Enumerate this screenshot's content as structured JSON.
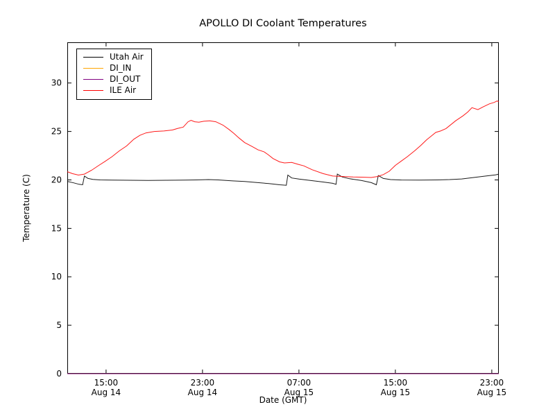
{
  "chart_data": {
    "type": "line",
    "title": "APOLLO DI Coolant Temperatures",
    "xlabel": "Date (GMT)",
    "ylabel": "Temperature (C)",
    "x_unit": "hours since Aug 14 00:00 GMT",
    "xlim": [
      11.78,
      47.58
    ],
    "ylim": [
      0,
      34.2
    ],
    "grid": false,
    "legend_position": "upper left",
    "yticks": [
      0,
      5,
      10,
      15,
      20,
      25,
      30
    ],
    "xticks": [
      {
        "value": 15,
        "time": "15:00",
        "date": "Aug 14"
      },
      {
        "value": 23,
        "time": "23:00",
        "date": "Aug 14"
      },
      {
        "value": 31,
        "time": "07:00",
        "date": "Aug 15"
      },
      {
        "value": 39,
        "time": "15:00",
        "date": "Aug 15"
      },
      {
        "value": 47,
        "time": "23:00",
        "date": "Aug 15"
      }
    ],
    "series": [
      {
        "name": "Utah Air",
        "color": "#000000",
        "points": [
          [
            11.78,
            19.85
          ],
          [
            12.3,
            19.7
          ],
          [
            12.75,
            19.55
          ],
          [
            13.05,
            19.5
          ],
          [
            13.2,
            20.4
          ],
          [
            13.5,
            20.15
          ],
          [
            13.9,
            20.05
          ],
          [
            14.5,
            20.0
          ],
          [
            15.5,
            19.98
          ],
          [
            17.0,
            19.96
          ],
          [
            18.5,
            19.95
          ],
          [
            20.0,
            19.96
          ],
          [
            21.5,
            19.98
          ],
          [
            22.5,
            20.0
          ],
          [
            23.5,
            20.03
          ],
          [
            24.3,
            20.0
          ],
          [
            25.5,
            19.9
          ],
          [
            26.5,
            19.83
          ],
          [
            27.5,
            19.73
          ],
          [
            28.5,
            19.62
          ],
          [
            29.4,
            19.5
          ],
          [
            29.95,
            19.45
          ],
          [
            30.08,
            20.5
          ],
          [
            30.4,
            20.2
          ],
          [
            31.0,
            20.08
          ],
          [
            32.0,
            19.93
          ],
          [
            33.0,
            19.78
          ],
          [
            33.8,
            19.65
          ],
          [
            34.08,
            19.55
          ],
          [
            34.18,
            20.6
          ],
          [
            34.6,
            20.3
          ],
          [
            35.2,
            20.12
          ],
          [
            36.2,
            19.93
          ],
          [
            37.0,
            19.72
          ],
          [
            37.42,
            19.5
          ],
          [
            37.58,
            20.45
          ],
          [
            38.0,
            20.15
          ],
          [
            38.6,
            20.03
          ],
          [
            39.5,
            19.99
          ],
          [
            41.0,
            19.98
          ],
          [
            42.5,
            20.0
          ],
          [
            43.5,
            20.03
          ],
          [
            44.5,
            20.1
          ],
          [
            45.5,
            20.25
          ],
          [
            46.5,
            20.4
          ],
          [
            47.3,
            20.52
          ],
          [
            47.58,
            20.6
          ]
        ]
      },
      {
        "name": "DI_IN",
        "color": "#ffa500",
        "points": [
          [
            11.78,
            0
          ],
          [
            47.58,
            0
          ]
        ]
      },
      {
        "name": "DI_OUT",
        "color": "#800080",
        "points": [
          [
            11.78,
            0
          ],
          [
            47.58,
            0
          ]
        ]
      },
      {
        "name": "ILE Air",
        "color": "#ff0000",
        "points": [
          [
            11.78,
            20.85
          ],
          [
            12.2,
            20.65
          ],
          [
            12.7,
            20.5
          ],
          [
            13.2,
            20.6
          ],
          [
            13.8,
            21.0
          ],
          [
            14.4,
            21.5
          ],
          [
            14.9,
            21.9
          ],
          [
            15.5,
            22.4
          ],
          [
            16.1,
            23.0
          ],
          [
            16.7,
            23.5
          ],
          [
            17.3,
            24.2
          ],
          [
            17.8,
            24.6
          ],
          [
            18.3,
            24.85
          ],
          [
            19.0,
            25.0
          ],
          [
            19.8,
            25.05
          ],
          [
            20.5,
            25.15
          ],
          [
            20.9,
            25.3
          ],
          [
            21.4,
            25.45
          ],
          [
            21.8,
            26.0
          ],
          [
            22.05,
            26.15
          ],
          [
            22.35,
            26.0
          ],
          [
            22.7,
            25.95
          ],
          [
            23.1,
            26.05
          ],
          [
            23.6,
            26.1
          ],
          [
            24.1,
            26.0
          ],
          [
            24.7,
            25.65
          ],
          [
            25.2,
            25.2
          ],
          [
            25.6,
            24.8
          ],
          [
            26.0,
            24.35
          ],
          [
            26.5,
            23.85
          ],
          [
            27.1,
            23.45
          ],
          [
            27.6,
            23.1
          ],
          [
            28.1,
            22.9
          ],
          [
            28.45,
            22.6
          ],
          [
            28.85,
            22.2
          ],
          [
            29.4,
            21.86
          ],
          [
            29.8,
            21.75
          ],
          [
            30.4,
            21.8
          ],
          [
            30.95,
            21.6
          ],
          [
            31.4,
            21.45
          ],
          [
            32.1,
            21.05
          ],
          [
            33.0,
            20.65
          ],
          [
            33.8,
            20.4
          ],
          [
            34.7,
            20.35
          ],
          [
            35.5,
            20.3
          ],
          [
            36.4,
            20.28
          ],
          [
            37.0,
            20.25
          ],
          [
            37.5,
            20.35
          ],
          [
            38.0,
            20.55
          ],
          [
            38.5,
            20.9
          ],
          [
            39.0,
            21.5
          ],
          [
            39.5,
            21.95
          ],
          [
            40.0,
            22.4
          ],
          [
            40.6,
            23.0
          ],
          [
            41.1,
            23.55
          ],
          [
            41.6,
            24.15
          ],
          [
            42.0,
            24.55
          ],
          [
            42.35,
            24.9
          ],
          [
            42.75,
            25.05
          ],
          [
            43.2,
            25.3
          ],
          [
            44.0,
            26.1
          ],
          [
            44.6,
            26.6
          ],
          [
            45.0,
            27.0
          ],
          [
            45.35,
            27.45
          ],
          [
            45.85,
            27.25
          ],
          [
            46.3,
            27.55
          ],
          [
            46.8,
            27.85
          ],
          [
            47.2,
            28.0
          ],
          [
            47.45,
            28.15
          ],
          [
            47.58,
            28.05
          ]
        ]
      }
    ]
  }
}
